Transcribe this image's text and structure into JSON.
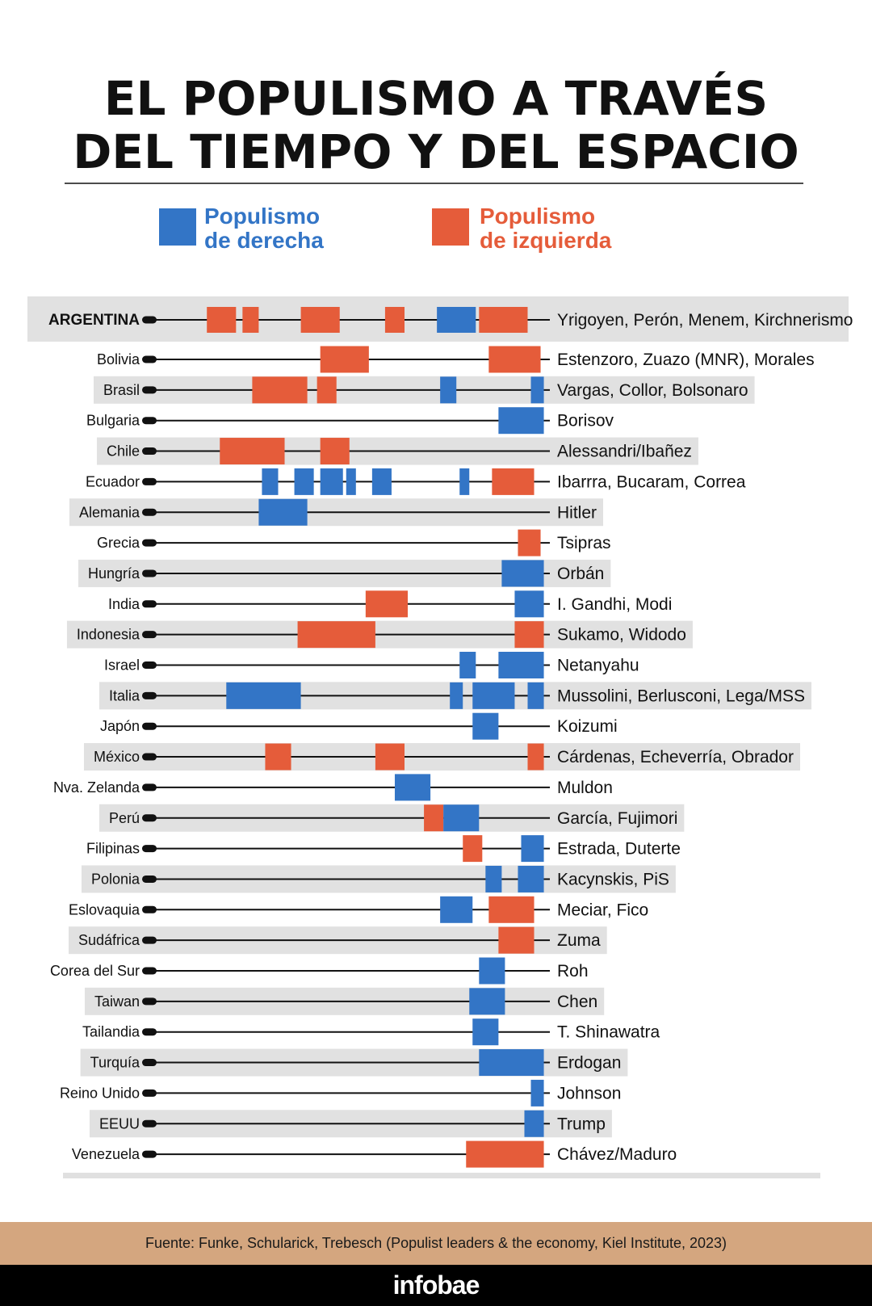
{
  "title": {
    "line1": "EL POPULISMO A TRAVÉS",
    "line2": "DEL TIEMPO Y DEL ESPACIO"
  },
  "legend": [
    {
      "key": "right",
      "line1": "Populismo",
      "line2": "de derecha",
      "color": "#3375c6"
    },
    {
      "key": "left",
      "line1": "Populismo",
      "line2": "de izquierda",
      "color": "#e55c3a"
    }
  ],
  "chart_data": {
    "type": "timeline",
    "note_units": "years (estimated; no axis printed)",
    "xlim": [
      1900,
      2020
    ],
    "colors": {
      "right": "#3375c6",
      "left": "#e55c3a"
    },
    "rows": [
      {
        "country": "ARGENTINA",
        "leaders": "Yrigoyen, Perón, Menem, Kirchnerismo",
        "highlight": true,
        "periods": [
          [
            "left",
            1916,
            1925
          ],
          [
            "left",
            1927,
            1932
          ],
          [
            "left",
            1945,
            1957
          ],
          [
            "left",
            1971,
            1977
          ],
          [
            "right",
            1987,
            1999
          ],
          [
            "left",
            2000,
            2015
          ]
        ]
      },
      {
        "country": "Bolivia",
        "leaders": "Estenzoro, Zuazo (MNR), Morales",
        "periods": [
          [
            "left",
            1951,
            1966
          ],
          [
            "left",
            2003,
            2019
          ]
        ]
      },
      {
        "country": "Brasil",
        "leaders": "Vargas, Collor, Bolsonaro",
        "periods": [
          [
            "left",
            1930,
            1947
          ],
          [
            "left",
            1950,
            1956
          ],
          [
            "right",
            1988,
            1993
          ],
          [
            "right",
            2016,
            2020
          ]
        ]
      },
      {
        "country": "Bulgaria",
        "leaders": "Borisov",
        "periods": [
          [
            "right",
            2006,
            2020
          ]
        ]
      },
      {
        "country": "Chile",
        "leaders": "Alessandri/Ibañez",
        "periods": [
          [
            "left",
            1920,
            1940
          ],
          [
            "left",
            1951,
            1960
          ]
        ]
      },
      {
        "country": "Ecuador",
        "leaders": "Ibarrra, Bucaram, Correa",
        "periods": [
          [
            "right",
            1933,
            1938
          ],
          [
            "right",
            1943,
            1949
          ],
          [
            "right",
            1951,
            1958
          ],
          [
            "right",
            1959,
            1962
          ],
          [
            "right",
            1967,
            1973
          ],
          [
            "right",
            1994,
            1997
          ],
          [
            "left",
            2004,
            2017
          ]
        ]
      },
      {
        "country": "Alemania",
        "leaders": "Hitler",
        "periods": [
          [
            "right",
            1932,
            1947
          ]
        ]
      },
      {
        "country": "Grecia",
        "leaders": "Tsipras",
        "periods": [
          [
            "left",
            2012,
            2019
          ]
        ]
      },
      {
        "country": "Hungría",
        "leaders": "Orbán",
        "periods": [
          [
            "right",
            2007,
            2020
          ]
        ]
      },
      {
        "country": "India",
        "leaders": "I. Gandhi, Modi",
        "periods": [
          [
            "left",
            1965,
            1978
          ],
          [
            "right",
            2011,
            2020
          ]
        ]
      },
      {
        "country": "Indonesia",
        "leaders": "Sukamo, Widodo",
        "periods": [
          [
            "left",
            1944,
            1968
          ],
          [
            "left",
            2011,
            2020
          ]
        ]
      },
      {
        "country": "Israel",
        "leaders": "Netanyahu",
        "periods": [
          [
            "right",
            1994,
            1999
          ],
          [
            "right",
            2006,
            2020
          ]
        ]
      },
      {
        "country": "Italia",
        "leaders": "Mussolini, Berlusconi, Lega/MSS",
        "periods": [
          [
            "right",
            1922,
            1945
          ],
          [
            "right",
            1991,
            1995
          ],
          [
            "right",
            1998,
            2011
          ],
          [
            "right",
            2015,
            2020
          ]
        ]
      },
      {
        "country": "Japón",
        "leaders": "Koizumi",
        "periods": [
          [
            "right",
            1998,
            2006
          ]
        ]
      },
      {
        "country": "México",
        "leaders": "Cárdenas, Echeverría, Obrador",
        "periods": [
          [
            "left",
            1934,
            1942
          ],
          [
            "left",
            1968,
            1977
          ],
          [
            "left",
            2015,
            2020
          ]
        ]
      },
      {
        "country": "Nva. Zelanda",
        "leaders": "Muldon",
        "periods": [
          [
            "right",
            1974,
            1985
          ]
        ]
      },
      {
        "country": "Perú",
        "leaders": "García, Fujimori",
        "periods": [
          [
            "left",
            1983,
            1989
          ],
          [
            "right",
            1989,
            2000
          ]
        ]
      },
      {
        "country": "Filipinas",
        "leaders": "Estrada, Duterte",
        "periods": [
          [
            "left",
            1995,
            2001
          ],
          [
            "right",
            2013,
            2020
          ]
        ]
      },
      {
        "country": "Polonia",
        "leaders": "Kacynskis, PiS",
        "periods": [
          [
            "right",
            2002,
            2007
          ],
          [
            "right",
            2012,
            2020
          ]
        ]
      },
      {
        "country": "Eslovaquia",
        "leaders": "Meciar, Fico",
        "periods": [
          [
            "right",
            1988,
            1998
          ],
          [
            "left",
            2003,
            2017
          ]
        ]
      },
      {
        "country": "Sudáfrica",
        "leaders": "Zuma",
        "periods": [
          [
            "left",
            2006,
            2017
          ]
        ]
      },
      {
        "country": "Corea del Sur",
        "leaders": "Roh",
        "periods": [
          [
            "right",
            2000,
            2008
          ]
        ]
      },
      {
        "country": "Taiwan",
        "leaders": "Chen",
        "periods": [
          [
            "right",
            1997,
            2008
          ]
        ]
      },
      {
        "country": "Tailandia",
        "leaders": "T. Shinawatra",
        "periods": [
          [
            "right",
            1998,
            2006
          ]
        ]
      },
      {
        "country": "Turquía",
        "leaders": "Erdogan",
        "periods": [
          [
            "right",
            2000,
            2020
          ]
        ]
      },
      {
        "country": "Reino Unido",
        "leaders": "Johnson",
        "periods": [
          [
            "right",
            2016,
            2020
          ]
        ]
      },
      {
        "country": "EEUU",
        "leaders": "Trump",
        "periods": [
          [
            "right",
            2014,
            2020
          ]
        ]
      },
      {
        "country": "Venezuela",
        "leaders": "Chávez/Maduro",
        "periods": [
          [
            "left",
            1996,
            2020
          ]
        ]
      }
    ]
  },
  "footer": {
    "source": "Fuente: Funke, Schularick, Trebesch (Populist leaders & the economy, Kiel Institute, 2023)",
    "brand": "infobae"
  }
}
